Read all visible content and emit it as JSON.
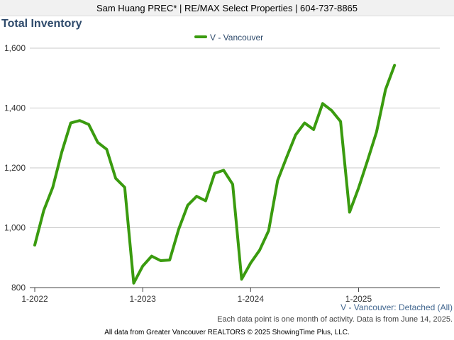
{
  "header": {
    "text": "Sam Huang PREC* | RE/MAX Select Properties | 604-737-8865"
  },
  "series_caption": "V - Vancouver: Detached (All)",
  "note": "Each data point is one month of activity. Data is from June 14, 2025.",
  "footer": "All data from Greater Vancouver REALTORS © 2025 ShowingTime Plus, LLC.",
  "chart_data": {
    "type": "line",
    "title": "Total Inventory",
    "xlabel": "",
    "ylabel": "",
    "ylim": [
      800,
      1600
    ],
    "y_ticks": [
      800,
      1000,
      1200,
      1400,
      1600
    ],
    "y_tick_labels": [
      "800",
      "1,000",
      "1,200",
      "1,400",
      "1,600"
    ],
    "x_ticks": [
      "1-2022",
      "1-2023",
      "1-2024",
      "1-2025"
    ],
    "grid": true,
    "legend_position": "top-center",
    "color": "#3a9b0f",
    "x": [
      "2022-01",
      "2022-02",
      "2022-03",
      "2022-04",
      "2022-05",
      "2022-06",
      "2022-07",
      "2022-08",
      "2022-09",
      "2022-10",
      "2022-11",
      "2022-12",
      "2023-01",
      "2023-02",
      "2023-03",
      "2023-04",
      "2023-05",
      "2023-06",
      "2023-07",
      "2023-08",
      "2023-09",
      "2023-10",
      "2023-11",
      "2023-12",
      "2024-01",
      "2024-02",
      "2024-03",
      "2024-04",
      "2024-05",
      "2024-06",
      "2024-07",
      "2024-08",
      "2024-09",
      "2024-10",
      "2024-11",
      "2024-12",
      "2025-01",
      "2025-02",
      "2025-03",
      "2025-04",
      "2025-05"
    ],
    "series": [
      {
        "name": "V - Vancouver",
        "values": [
          942,
          1058,
          1135,
          1252,
          1350,
          1358,
          1345,
          1285,
          1262,
          1165,
          1135,
          815,
          872,
          905,
          890,
          892,
          995,
          1075,
          1105,
          1090,
          1182,
          1192,
          1145,
          828,
          882,
          925,
          990,
          1158,
          1235,
          1310,
          1350,
          1328,
          1415,
          1392,
          1355,
          1052,
          1133,
          1225,
          1320,
          1462,
          1543
        ]
      }
    ]
  }
}
